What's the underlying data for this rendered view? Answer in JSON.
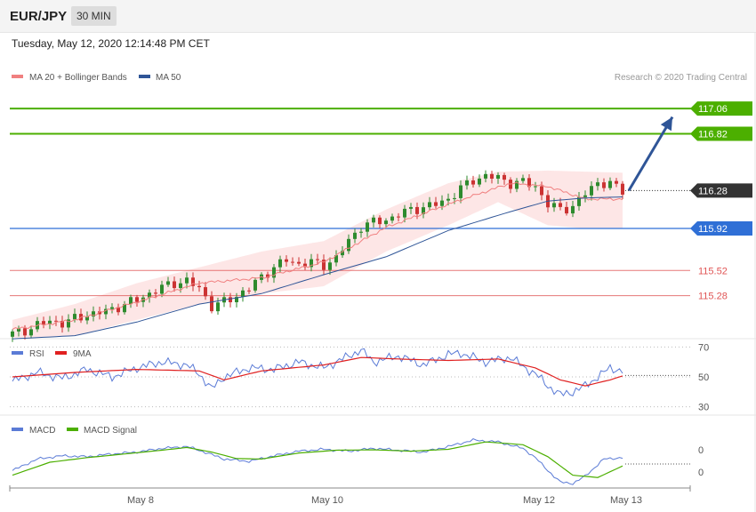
{
  "header": {
    "symbol": "EUR/JPY",
    "timeframe": "30 MIN"
  },
  "datetime": "Tuesday, May 12, 2020 12:14:48 PM CET",
  "credit": "Research © 2020 Trading Central",
  "colors": {
    "ma20": "#f08080",
    "ma50": "#2f5597",
    "bands": "#fde2e2",
    "up": "#2e8b2e",
    "down": "#cc3333",
    "resistance": "#4caf00",
    "support_blue": "#2f6fd6",
    "support_red": "#e05555",
    "current": "#333333",
    "rsi": "#5b7bd6",
    "rsi_ma": "#e02020",
    "macd": "#5b7bd6",
    "macd_signal": "#4caf00"
  },
  "chart_data": [
    {
      "type": "candlestick",
      "legend": [
        {
          "name": "MA 20 + Bollinger Bands",
          "color": "#f08080"
        },
        {
          "name": "MA 50",
          "color": "#2f5597"
        }
      ],
      "ylim": [
        114.88,
        117.45
      ],
      "x_ticks": [
        {
          "label": "May 8",
          "index": 20
        },
        {
          "label": "May 10",
          "index": 50
        },
        {
          "label": "May 12",
          "index": 84
        },
        {
          "label": "May 13",
          "index": 98
        }
      ],
      "candle_points": [
        [
          0,
          114.92
        ],
        [
          2,
          114.95
        ],
        [
          4,
          115.0
        ],
        [
          6,
          115.04
        ],
        [
          8,
          115.02
        ],
        [
          10,
          115.06
        ],
        [
          12,
          115.1
        ],
        [
          14,
          115.12
        ],
        [
          16,
          115.15
        ],
        [
          18,
          115.2
        ],
        [
          20,
          115.24
        ],
        [
          22,
          115.3
        ],
        [
          24,
          115.36
        ],
        [
          26,
          115.4
        ],
        [
          28,
          115.42
        ],
        [
          30,
          115.35
        ],
        [
          32,
          115.18
        ],
        [
          34,
          115.22
        ],
        [
          36,
          115.28
        ],
        [
          38,
          115.35
        ],
        [
          40,
          115.46
        ],
        [
          42,
          115.55
        ],
        [
          44,
          115.62
        ],
        [
          46,
          115.58
        ],
        [
          48,
          115.6
        ],
        [
          50,
          115.57
        ],
        [
          52,
          115.64
        ],
        [
          54,
          115.8
        ],
        [
          56,
          115.94
        ],
        [
          58,
          115.98
        ],
        [
          60,
          116.0
        ],
        [
          62,
          116.05
        ],
        [
          64,
          116.1
        ],
        [
          66,
          116.12
        ],
        [
          68,
          116.15
        ],
        [
          70,
          116.2
        ],
        [
          72,
          116.3
        ],
        [
          74,
          116.38
        ],
        [
          76,
          116.42
        ],
        [
          78,
          116.4
        ],
        [
          80,
          116.35
        ],
        [
          82,
          116.36
        ],
        [
          84,
          116.32
        ],
        [
          86,
          116.15
        ],
        [
          88,
          116.1
        ],
        [
          90,
          116.13
        ],
        [
          92,
          116.25
        ],
        [
          94,
          116.36
        ],
        [
          96,
          116.34
        ],
        [
          98,
          116.28
        ]
      ],
      "ma20_points": [
        [
          0,
          114.96
        ],
        [
          10,
          115.05
        ],
        [
          20,
          115.22
        ],
        [
          30,
          115.4
        ],
        [
          40,
          115.45
        ],
        [
          50,
          115.6
        ],
        [
          60,
          115.93
        ],
        [
          70,
          116.15
        ],
        [
          80,
          116.35
        ],
        [
          86,
          116.32
        ],
        [
          92,
          116.2
        ],
        [
          98,
          116.2
        ]
      ],
      "ma50_points": [
        [
          0,
          114.87
        ],
        [
          10,
          114.9
        ],
        [
          20,
          115.03
        ],
        [
          30,
          115.2
        ],
        [
          40,
          115.3
        ],
        [
          50,
          115.48
        ],
        [
          60,
          115.65
        ],
        [
          70,
          115.9
        ],
        [
          80,
          116.08
        ],
        [
          86,
          116.18
        ],
        [
          92,
          116.21
        ],
        [
          98,
          116.22
        ]
      ],
      "band_upper_points": [
        [
          0,
          115.05
        ],
        [
          10,
          115.2
        ],
        [
          20,
          115.4
        ],
        [
          30,
          115.55
        ],
        [
          40,
          115.7
        ],
        [
          50,
          115.8
        ],
        [
          60,
          116.1
        ],
        [
          70,
          116.35
        ],
        [
          78,
          116.46
        ],
        [
          86,
          116.47
        ],
        [
          92,
          116.46
        ],
        [
          98,
          116.45
        ]
      ],
      "band_lower_points": [
        [
          0,
          114.88
        ],
        [
          10,
          114.9
        ],
        [
          20,
          115.05
        ],
        [
          30,
          115.2
        ],
        [
          40,
          115.3
        ],
        [
          50,
          115.37
        ],
        [
          60,
          115.7
        ],
        [
          70,
          115.95
        ],
        [
          78,
          116.17
        ],
        [
          86,
          115.95
        ],
        [
          92,
          115.92
        ],
        [
          98,
          115.92
        ]
      ],
      "levels": [
        {
          "label": "117.06",
          "value": 117.06,
          "kind": "resistance"
        },
        {
          "label": "116.82",
          "value": 116.82,
          "kind": "resistance"
        },
        {
          "label": "116.28",
          "value": 116.28,
          "kind": "current"
        },
        {
          "label": "115.92",
          "value": 115.92,
          "kind": "support_blue"
        },
        {
          "label": "115.52",
          "value": 115.52,
          "kind": "support_red"
        },
        {
          "label": "115.28",
          "value": 115.28,
          "kind": "support_red"
        }
      ],
      "arrow": {
        "from": [
          99,
          116.28
        ],
        "to": [
          106,
          116.98
        ]
      }
    },
    {
      "type": "line",
      "series": [
        {
          "name": "RSI",
          "color": "#5b7bd6"
        },
        {
          "name": "9MA",
          "color": "#e02020"
        }
      ],
      "ylim": [
        25,
        75
      ],
      "y_ticks": [
        "70",
        "50",
        "30"
      ],
      "rsi_points": [
        [
          0,
          47
        ],
        [
          4,
          53
        ],
        [
          8,
          49
        ],
        [
          12,
          55
        ],
        [
          16,
          50
        ],
        [
          20,
          56
        ],
        [
          24,
          60
        ],
        [
          28,
          58
        ],
        [
          30,
          52
        ],
        [
          32,
          42
        ],
        [
          34,
          50
        ],
        [
          38,
          56
        ],
        [
          42,
          55
        ],
        [
          46,
          60
        ],
        [
          50,
          56
        ],
        [
          54,
          64
        ],
        [
          56,
          68
        ],
        [
          58,
          60
        ],
        [
          62,
          64
        ],
        [
          66,
          58
        ],
        [
          70,
          65
        ],
        [
          72,
          66
        ],
        [
          76,
          60
        ],
        [
          80,
          63
        ],
        [
          82,
          57
        ],
        [
          84,
          52
        ],
        [
          86,
          44
        ],
        [
          88,
          38
        ],
        [
          90,
          40
        ],
        [
          92,
          44
        ],
        [
          94,
          50
        ],
        [
          96,
          56
        ],
        [
          98,
          54
        ]
      ],
      "rsi_ma_points": [
        [
          0,
          50
        ],
        [
          10,
          53
        ],
        [
          20,
          55
        ],
        [
          30,
          54
        ],
        [
          34,
          48
        ],
        [
          40,
          54
        ],
        [
          50,
          58
        ],
        [
          56,
          63
        ],
        [
          62,
          62
        ],
        [
          70,
          61
        ],
        [
          78,
          62
        ],
        [
          84,
          56
        ],
        [
          88,
          48
        ],
        [
          92,
          44
        ],
        [
          96,
          48
        ],
        [
          99,
          52
        ]
      ]
    },
    {
      "type": "line",
      "series": [
        {
          "name": "MACD",
          "color": "#5b7bd6"
        },
        {
          "name": "MACD Signal",
          "color": "#4caf00"
        }
      ],
      "y_ticks": [
        "0",
        "0"
      ],
      "macd_points": [
        [
          0,
          0.3
        ],
        [
          4,
          0.55
        ],
        [
          8,
          0.62
        ],
        [
          12,
          0.6
        ],
        [
          16,
          0.66
        ],
        [
          20,
          0.7
        ],
        [
          24,
          0.78
        ],
        [
          28,
          0.82
        ],
        [
          30,
          0.74
        ],
        [
          34,
          0.55
        ],
        [
          38,
          0.5
        ],
        [
          42,
          0.62
        ],
        [
          46,
          0.72
        ],
        [
          50,
          0.76
        ],
        [
          54,
          0.72
        ],
        [
          58,
          0.78
        ],
        [
          62,
          0.74
        ],
        [
          66,
          0.7
        ],
        [
          70,
          0.82
        ],
        [
          74,
          0.96
        ],
        [
          78,
          0.92
        ],
        [
          82,
          0.78
        ],
        [
          84,
          0.58
        ],
        [
          86,
          0.3
        ],
        [
          88,
          0.05
        ],
        [
          90,
          0.02
        ],
        [
          92,
          0.18
        ],
        [
          95,
          0.55
        ],
        [
          98,
          0.58
        ]
      ],
      "signal_points": [
        [
          0,
          0.2
        ],
        [
          6,
          0.48
        ],
        [
          12,
          0.58
        ],
        [
          18,
          0.66
        ],
        [
          24,
          0.74
        ],
        [
          28,
          0.8
        ],
        [
          32,
          0.7
        ],
        [
          36,
          0.56
        ],
        [
          40,
          0.55
        ],
        [
          46,
          0.68
        ],
        [
          52,
          0.74
        ],
        [
          58,
          0.75
        ],
        [
          64,
          0.72
        ],
        [
          70,
          0.76
        ],
        [
          76,
          0.92
        ],
        [
          82,
          0.86
        ],
        [
          86,
          0.6
        ],
        [
          90,
          0.2
        ],
        [
          94,
          0.15
        ],
        [
          98,
          0.4
        ]
      ]
    }
  ]
}
